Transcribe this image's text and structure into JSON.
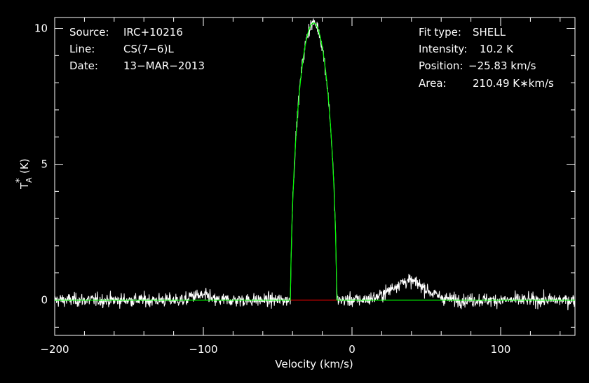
{
  "chart_data": {
    "type": "line",
    "xlabel": "Velocity (km/s)",
    "ylabel_main": "T",
    "ylabel_sub": "A",
    "ylabel_sup": "*",
    "ylabel_unit": "(K)",
    "xlim": [
      -200,
      150
    ],
    "ylim": [
      -1.3,
      10.4
    ],
    "x_ticks": [
      {
        "value": -200,
        "label": "−200"
      },
      {
        "value": -100,
        "label": "−100"
      },
      {
        "value": 0,
        "label": "0"
      },
      {
        "value": 100,
        "label": "100"
      }
    ],
    "y_ticks": [
      {
        "value": 0,
        "label": "0"
      },
      {
        "value": 5,
        "label": "5"
      },
      {
        "value": 10,
        "label": "10"
      }
    ],
    "grid": false,
    "colors": {
      "background": "#000000",
      "axes": "#ffffff",
      "data": "#ffffff",
      "fit": "#00ff00",
      "baseline_gap": "#ff0000"
    },
    "fit": {
      "center": -25.83,
      "peak": 10.2,
      "half_width": 15.5,
      "horn": 0.0
    },
    "baseline_gap_range": [
      -41.3,
      -10.3
    ],
    "noise_rms": 0.25,
    "secondary_bump": {
      "center": 38,
      "amplitude": 0.7,
      "width": 16
    },
    "annotations_left": [
      {
        "key": "Source:",
        "value": "IRC+10216"
      },
      {
        "key": "Line:",
        "value": "CS(7−6)L"
      },
      {
        "key": "Date:",
        "value": "13−MAR−2013"
      }
    ],
    "annotations_right": [
      {
        "key": "Fit type:",
        "value": "SHELL"
      },
      {
        "key": "Intensity:",
        "value": "10.2 K"
      },
      {
        "key": "Position:",
        "value": "−25.83 km/s"
      },
      {
        "key": "Area:",
        "value": "210.49 K∗km/s"
      }
    ]
  }
}
